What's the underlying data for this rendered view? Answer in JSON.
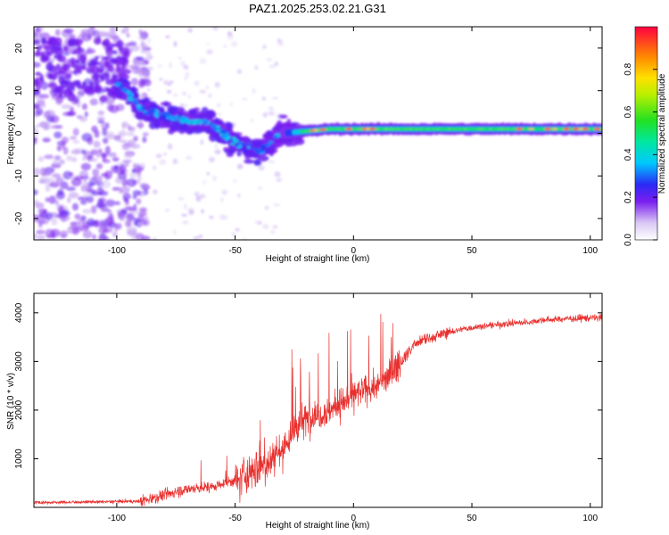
{
  "title": "PAZ1.2025.253.02.21.G31",
  "chart_data": [
    {
      "type": "heatmap",
      "name": "spectrogram",
      "xlabel": "Height of straight line (km)",
      "ylabel": "Frequency (Hz)",
      "xlim": [
        -135,
        105
      ],
      "ylim": [
        -25,
        25
      ],
      "xticks": [
        -100,
        -50,
        0,
        50,
        100
      ],
      "yticks": [
        -20,
        -10,
        0,
        10,
        20
      ],
      "colorbar": {
        "label": "Normalized spectral amplitude",
        "range": [
          0,
          1
        ],
        "ticks": [
          0.0,
          0.2,
          0.4,
          0.6,
          0.8
        ],
        "tick_labels": [
          "0.0",
          "0.2",
          "0.4",
          "0.6",
          "0.8"
        ]
      },
      "ridge": {
        "description_points_x": [
          -98,
          -90,
          -80,
          -70,
          -60,
          -50,
          -40,
          -30,
          -20,
          -10,
          0,
          10,
          30,
          50,
          70,
          90,
          105
        ],
        "description_points_y": [
          11,
          6,
          4,
          3,
          2,
          -2,
          -4,
          0,
          0.5,
          1,
          1,
          1,
          1,
          1,
          1,
          1,
          1
        ]
      }
    },
    {
      "type": "line",
      "name": "snr",
      "xlabel": "Height of straight line (km)",
      "ylabel": "SNR (10 * v/v)",
      "xlim": [
        -135,
        105
      ],
      "ylim": [
        0,
        4400
      ],
      "xticks": [
        -100,
        -50,
        0,
        50,
        100
      ],
      "yticks": [
        1000,
        2000,
        3000,
        4000
      ],
      "color": "#e8302e",
      "envelope_x": [
        -135,
        -110,
        -90,
        -80,
        -70,
        -60,
        -50,
        -40,
        -30,
        -25,
        -20,
        -15,
        -10,
        -5,
        0,
        5,
        10,
        15,
        20,
        25,
        30,
        40,
        50,
        60,
        70,
        80,
        90,
        100,
        105
      ],
      "envelope_y": [
        100,
        110,
        130,
        250,
        380,
        420,
        550,
        800,
        1200,
        1600,
        1800,
        1900,
        2000,
        2150,
        2300,
        2400,
        2500,
        2700,
        3000,
        3300,
        3450,
        3600,
        3700,
        3750,
        3800,
        3850,
        3880,
        3900,
        3900
      ]
    }
  ]
}
